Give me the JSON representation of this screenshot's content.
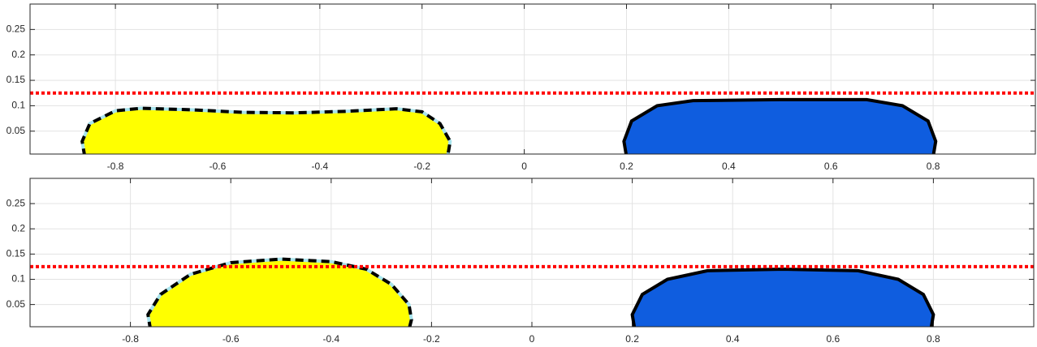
{
  "chart_data": [
    {
      "type": "patch",
      "xlim": [
        -0.967,
        1.0
      ],
      "ylim": [
        0.005,
        0.3
      ],
      "xticks": [
        -0.8,
        -0.6,
        -0.4,
        -0.2,
        0,
        0.2,
        0.4,
        0.6,
        0.8
      ],
      "yticks": [
        0.05,
        0.1,
        0.15,
        0.2,
        0.25
      ],
      "grid": true,
      "hlines": [
        {
          "value": 0.125,
          "color": "#ff0000",
          "style": "dotted"
        }
      ],
      "series": [
        {
          "color": "#ffff00",
          "edge_color": "#000000",
          "edge_under_color": "#a8e4ec",
          "edge_style": "dashed",
          "x": [
            -0.86,
            -0.865,
            -0.85,
            -0.8,
            -0.75,
            -0.65,
            -0.55,
            -0.45,
            -0.35,
            -0.25,
            -0.2,
            -0.165,
            -0.145,
            -0.15
          ],
          "values": [
            0,
            0.03,
            0.065,
            0.09,
            0.095,
            0.092,
            0.087,
            0.086,
            0.089,
            0.094,
            0.088,
            0.065,
            0.03,
            0
          ]
        },
        {
          "color": "#0f5ddf",
          "edge_color": "#000000",
          "edge_style": "solid",
          "x": [
            0.2,
            0.195,
            0.21,
            0.26,
            0.33,
            0.5,
            0.67,
            0.74,
            0.79,
            0.805,
            0.8
          ],
          "values": [
            0,
            0.03,
            0.07,
            0.1,
            0.11,
            0.112,
            0.112,
            0.1,
            0.07,
            0.03,
            0
          ]
        }
      ]
    },
    {
      "type": "patch",
      "xlim": [
        -1.0,
        1.0
      ],
      "ylim": [
        0.006,
        0.3
      ],
      "xticks": [
        -0.8,
        -0.6,
        -0.4,
        -0.2,
        0,
        0.2,
        0.4,
        0.6,
        0.8
      ],
      "yticks": [
        0.05,
        0.1,
        0.15,
        0.2,
        0.25
      ],
      "grid": true,
      "hlines": [
        {
          "value": 0.125,
          "color": "#ff0000",
          "style": "dotted"
        }
      ],
      "series": [
        {
          "color": "#ffff00",
          "edge_color": "#000000",
          "edge_under_color": "#a8e4ec",
          "edge_style": "dashed",
          "x": [
            -0.76,
            -0.765,
            -0.74,
            -0.68,
            -0.6,
            -0.5,
            -0.4,
            -0.33,
            -0.28,
            -0.245,
            -0.24,
            -0.245
          ],
          "values": [
            0,
            0.03,
            0.07,
            0.11,
            0.133,
            0.14,
            0.135,
            0.12,
            0.09,
            0.05,
            0.02,
            0
          ]
        },
        {
          "color": "#0f5ddf",
          "edge_color": "#000000",
          "edge_style": "solid",
          "x": [
            0.205,
            0.2,
            0.22,
            0.27,
            0.35,
            0.5,
            0.65,
            0.73,
            0.78,
            0.8,
            0.795
          ],
          "values": [
            0,
            0.03,
            0.07,
            0.1,
            0.117,
            0.12,
            0.117,
            0.1,
            0.07,
            0.03,
            0
          ]
        }
      ]
    }
  ]
}
